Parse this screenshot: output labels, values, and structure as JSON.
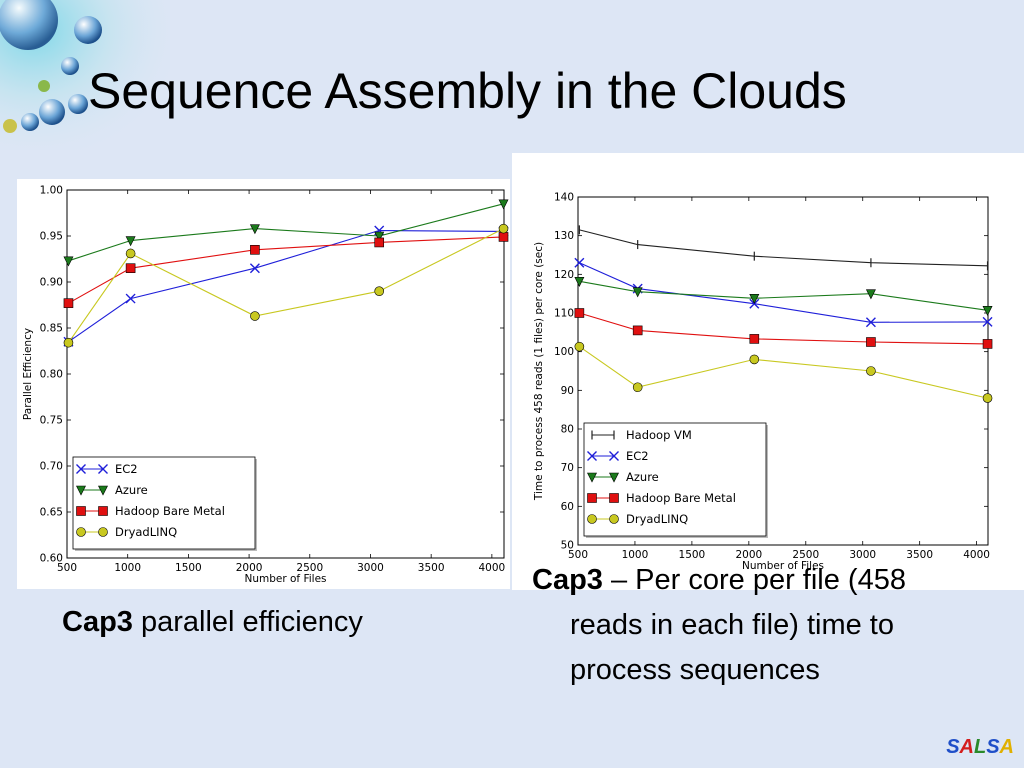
{
  "slide": {
    "title": "Sequence Assembly in the Clouds"
  },
  "captions": [
    {
      "bold": "Cap3",
      "text": " parallel efficiency"
    },
    {
      "bold": "Cap3",
      "text": " – Per core per file (458 reads in each file) time to process sequences"
    }
  ],
  "brand": {
    "letters": [
      "S",
      "A",
      "L",
      "S",
      "A"
    ],
    "colors": [
      "#1f4fc8",
      "#d41d1d",
      "#2a8a2a",
      "#1f4fc8",
      "#e0b000"
    ]
  },
  "chart_data": [
    {
      "type": "line",
      "xlabel": "Number of Files",
      "ylabel": "Parallel Efficiency",
      "xlim": [
        500,
        4100
      ],
      "ylim": [
        0.6,
        1.0
      ],
      "xticks": [
        "500",
        "1000",
        "1500",
        "2000",
        "2500",
        "3000",
        "3500",
        "4000"
      ],
      "yticks": [
        "0.60",
        "0.65",
        "0.70",
        "0.75",
        "0.80",
        "0.85",
        "0.90",
        "0.95",
        "1.00"
      ],
      "legend_position": "lower-left",
      "series": [
        {
          "name": "EC2",
          "color": "#1f1fd9",
          "marker": "x",
          "x": [
            512,
            1024,
            2048,
            3072,
            4096
          ],
          "y": [
            0.835,
            0.882,
            0.915,
            0.956,
            0.955
          ]
        },
        {
          "name": "Azure",
          "color": "#1b7a1b",
          "marker": "triangle-down",
          "x": [
            512,
            1024,
            2048,
            3072,
            4096
          ],
          "y": [
            0.923,
            0.945,
            0.958,
            0.95,
            0.985
          ]
        },
        {
          "name": "Hadoop Bare Metal",
          "color": "#e01010",
          "marker": "square",
          "x": [
            512,
            1024,
            2048,
            3072,
            4096
          ],
          "y": [
            0.877,
            0.915,
            0.935,
            0.943,
            0.949
          ]
        },
        {
          "name": "DryadLINQ",
          "color": "#c8c820",
          "marker": "circle",
          "x": [
            512,
            1024,
            2048,
            3072,
            4096
          ],
          "y": [
            0.834,
            0.931,
            0.863,
            0.89,
            0.958
          ]
        }
      ]
    },
    {
      "type": "line",
      "xlabel": "Number of Files",
      "ylabel": "Time to process 458 reads (1 files) per core (sec)",
      "xlim": [
        500,
        4100
      ],
      "ylim": [
        50,
        140
      ],
      "xticks": [
        "500",
        "1000",
        "1500",
        "2000",
        "2500",
        "3000",
        "3500",
        "4000"
      ],
      "yticks": [
        "50",
        "60",
        "70",
        "80",
        "90",
        "100",
        "110",
        "120",
        "130",
        "140"
      ],
      "legend_position": "lower-left",
      "series": [
        {
          "name": "Hadoop VM",
          "color": "#222222",
          "marker": "vline",
          "x": [
            512,
            1024,
            2048,
            3072,
            4096
          ],
          "y": [
            131.5,
            127.7,
            124.7,
            123.0,
            122.2
          ]
        },
        {
          "name": "EC2",
          "color": "#1f1fd9",
          "marker": "x",
          "x": [
            512,
            1024,
            2048,
            3072,
            4096
          ],
          "y": [
            123.0,
            116.3,
            112.4,
            107.6,
            107.7
          ]
        },
        {
          "name": "Azure",
          "color": "#1b7a1b",
          "marker": "triangle-down",
          "x": [
            512,
            1024,
            2048,
            3072,
            4096
          ],
          "y": [
            118.2,
            115.5,
            113.8,
            115.0,
            110.7
          ]
        },
        {
          "name": "Hadoop Bare Metal",
          "color": "#e01010",
          "marker": "square",
          "x": [
            512,
            1024,
            2048,
            3072,
            4096
          ],
          "y": [
            110.0,
            105.5,
            103.3,
            102.5,
            102.0
          ]
        },
        {
          "name": "DryadLINQ",
          "color": "#c8c820",
          "marker": "circle",
          "x": [
            512,
            1024,
            2048,
            3072,
            4096
          ],
          "y": [
            101.3,
            90.8,
            98.0,
            95.0,
            88.0
          ]
        }
      ]
    }
  ]
}
